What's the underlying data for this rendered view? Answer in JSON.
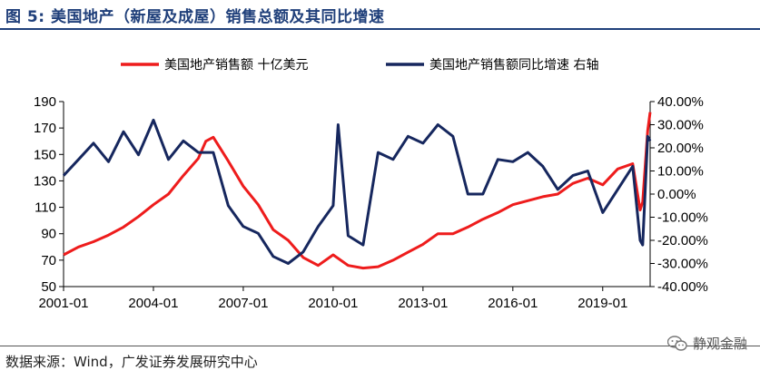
{
  "figure": {
    "title": "图 5:  美国地产（新屋及成屋）销售总额及其同比增速",
    "source": "数据来源：Wind，广发证券发展研究中心",
    "watermark": "静观金融",
    "watermark_icon": "wechat-icon"
  },
  "chart_data": {
    "type": "line",
    "title": "",
    "xlabel": "",
    "ylabel": "",
    "ylim": [
      50,
      190
    ],
    "y2lim": [
      -40,
      40
    ],
    "xlim": [
      "2001-01",
      "2020-08"
    ],
    "yticks": [
      "190",
      "170",
      "150",
      "130",
      "110",
      "90",
      "70",
      "50"
    ],
    "y2ticks": [
      "40.00%",
      "30.00%",
      "20.00%",
      "10.00%",
      "0.00%",
      "-10.00%",
      "-20.00%",
      "-30.00%",
      "-40.00%"
    ],
    "xticks": [
      "2001-01",
      "2004-01",
      "2007-01",
      "2010-01",
      "2013-01",
      "2016-01",
      "2019-01"
    ],
    "legend": {
      "position": "top"
    },
    "colors": {
      "sales": "#ee1c1c",
      "yoy": "#16275e"
    },
    "series": [
      {
        "name": "美国地产销售额 十亿美元",
        "axis": "left",
        "x": [
          "2001-01",
          "2001-07",
          "2002-01",
          "2002-07",
          "2003-01",
          "2003-07",
          "2004-01",
          "2004-07",
          "2005-01",
          "2005-07",
          "2005-10",
          "2006-01",
          "2006-07",
          "2007-01",
          "2007-07",
          "2008-01",
          "2008-07",
          "2009-01",
          "2009-07",
          "2010-01",
          "2010-07",
          "2011-01",
          "2011-07",
          "2012-01",
          "2012-07",
          "2013-01",
          "2013-07",
          "2014-01",
          "2014-07",
          "2015-01",
          "2015-07",
          "2016-01",
          "2016-07",
          "2017-01",
          "2017-07",
          "2018-01",
          "2018-07",
          "2019-01",
          "2019-07",
          "2020-01",
          "2020-04",
          "2020-05",
          "2020-07",
          "2020-08"
        ],
        "values": [
          74,
          80,
          84,
          89,
          95,
          103,
          112,
          120,
          134,
          147,
          160,
          163,
          145,
          126,
          112,
          93,
          85,
          72,
          66,
          74,
          66,
          64,
          65,
          70,
          76,
          82,
          90,
          90,
          95,
          101,
          106,
          112,
          115,
          118,
          120,
          128,
          132,
          127,
          139,
          143,
          108,
          114,
          168,
          182
        ]
      },
      {
        "name": "美国地产销售额同比增速 右轴",
        "axis": "right",
        "x": [
          "2001-01",
          "2001-07",
          "2002-01",
          "2002-07",
          "2003-01",
          "2003-07",
          "2004-01",
          "2004-07",
          "2005-01",
          "2005-07",
          "2006-01",
          "2006-07",
          "2007-01",
          "2007-07",
          "2008-01",
          "2008-07",
          "2009-01",
          "2009-07",
          "2010-01",
          "2010-03",
          "2010-07",
          "2011-01",
          "2011-07",
          "2012-01",
          "2012-07",
          "2013-01",
          "2013-07",
          "2014-01",
          "2014-07",
          "2015-01",
          "2015-07",
          "2016-01",
          "2016-07",
          "2017-01",
          "2017-07",
          "2018-01",
          "2018-07",
          "2019-01",
          "2019-07",
          "2020-01",
          "2020-04",
          "2020-05",
          "2020-07",
          "2020-08"
        ],
        "values": [
          8,
          15,
          22,
          14,
          27,
          17,
          32,
          15,
          23,
          18,
          18,
          -5,
          -14,
          -17,
          -27,
          -30,
          -25,
          -14,
          -5,
          30,
          -18,
          -22,
          18,
          15,
          25,
          22,
          30,
          25,
          0,
          0,
          15,
          14,
          18,
          12,
          2,
          8,
          10,
          -8,
          2,
          12,
          -20,
          -22,
          25,
          23
        ]
      }
    ]
  }
}
